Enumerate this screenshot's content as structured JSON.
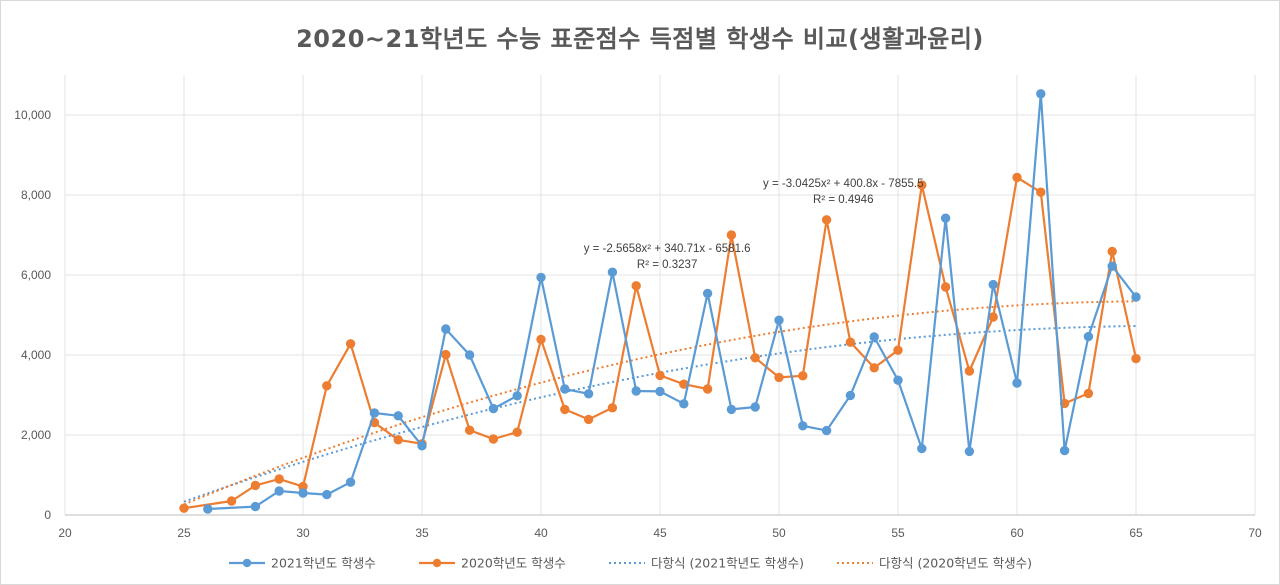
{
  "chart_data": {
    "type": "line",
    "title": "2020~21학년도 수능 표준점수 득점별 학생수 비교(생활과윤리)",
    "xlim": [
      20,
      70
    ],
    "ylim": [
      0,
      11000
    ],
    "xticks": [
      20,
      25,
      30,
      35,
      40,
      45,
      50,
      55,
      60,
      65,
      70
    ],
    "yticks": [
      0,
      2000,
      4000,
      6000,
      8000,
      10000
    ],
    "ytick_labels": [
      "0",
      "2,000",
      "4,000",
      "6,000",
      "8,000",
      "10,000"
    ],
    "grid": true,
    "legend_position": "bottom",
    "series": [
      {
        "name": "2021학년도 학생수",
        "color": "#5B9BD5",
        "x": [
          26,
          28,
          29,
          30,
          31,
          32,
          33,
          34,
          35,
          36,
          37,
          38,
          39,
          40,
          41,
          42,
          43,
          44,
          45,
          46,
          47,
          48,
          49,
          50,
          51,
          52,
          53,
          54,
          55,
          56,
          57,
          58,
          59,
          60,
          61,
          62,
          63,
          64,
          65
        ],
        "y": [
          150,
          210,
          600,
          550,
          510,
          820,
          2550,
          2480,
          1730,
          4650,
          4000,
          2660,
          2980,
          5940,
          3150,
          3030,
          6070,
          3100,
          3090,
          2780,
          5540,
          2640,
          2700,
          4870,
          2230,
          2110,
          2990,
          4450,
          3370,
          1660,
          7420,
          1590,
          5760,
          3300,
          10530,
          1610,
          4460,
          6220,
          5450
        ]
      },
      {
        "name": "2020학년도 학생수",
        "color": "#ED7D31",
        "x": [
          25,
          27,
          28,
          29,
          30,
          31,
          32,
          33,
          34,
          35,
          36,
          37,
          38,
          39,
          40,
          41,
          42,
          43,
          44,
          45,
          46,
          47,
          48,
          49,
          50,
          51,
          52,
          53,
          54,
          55,
          56,
          57,
          58,
          59,
          60,
          61,
          62,
          63,
          64,
          65
        ],
        "y": [
          170,
          350,
          740,
          900,
          710,
          3230,
          4280,
          2310,
          1880,
          1780,
          4010,
          2120,
          1900,
          2070,
          4390,
          2640,
          2390,
          2680,
          5730,
          3490,
          3270,
          3150,
          7000,
          3930,
          3440,
          3480,
          7380,
          4320,
          3680,
          4120,
          8250,
          5700,
          3600,
          4950,
          8440,
          8070,
          2790,
          3040,
          6590,
          3910
        ]
      }
    ],
    "trendlines": [
      {
        "name": "다항식 (2021학년도 학생수)",
        "color": "#5B9BD5",
        "coeffs": [
          -2.5658,
          340.71,
          -6581.6
        ],
        "x_range": [
          25,
          65
        ],
        "equation": "y = -2.5658x² + 340.71x - 6581.6",
        "r2": "R² = 0.3237",
        "label_anchor": [
          45.3,
          6580
        ]
      },
      {
        "name": "다항식 (2020학년도 학생수)",
        "color": "#ED7D31",
        "coeffs": [
          -3.0425,
          400.8,
          -7855.5
        ],
        "x_range": [
          25,
          65
        ],
        "equation": "y = -3.0425x² + 400.8x - 7855.5",
        "r2": "R² = 0.4946",
        "label_anchor": [
          52.7,
          8200
        ]
      }
    ]
  }
}
